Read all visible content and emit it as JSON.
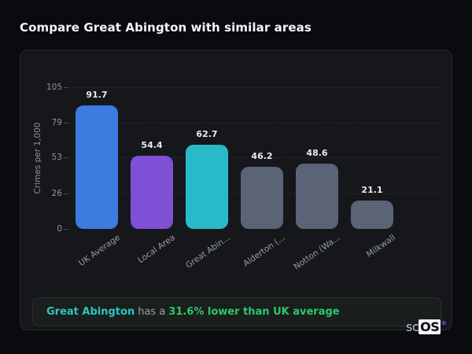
{
  "title": "Compare Great Abington with similar areas",
  "chart_data": {
    "type": "bar",
    "title": "Compare Great Abington with similar areas",
    "xlabel": "",
    "ylabel": "Crimes per 1,000",
    "ylim": [
      0,
      105
    ],
    "yticks": [
      0,
      26,
      53,
      79,
      105
    ],
    "grid": "horizontal-dashed",
    "legend": "none",
    "categories": [
      "UK Average",
      "Local Area",
      "Great Abin...",
      "Alderton (...",
      "Notton (Wa...",
      "Milkwall"
    ],
    "values": [
      91.7,
      54.4,
      62.7,
      46.2,
      48.6,
      21.1
    ],
    "value_labels": [
      "91.7",
      "54.4",
      "62.7",
      "46.2",
      "48.6",
      "21.1"
    ],
    "bar_colors": [
      "#3c7be0",
      "#7d50d6",
      "#28bac9",
      "#5a6476",
      "#5a6476",
      "#5a6476"
    ]
  },
  "note": {
    "area_label": "Great Abington",
    "connector": "has a",
    "highlight": "31.6% lower than UK average"
  },
  "branding": {
    "prefix": "sc",
    "suffix": "OS",
    "registered_mark": "®"
  },
  "colors": {
    "page_bg": "#0a0b0e",
    "panel_bg": "#16171b",
    "panel_border": "#26272c",
    "accent_blue": "#3c7be0",
    "accent_purple": "#7d50d6",
    "accent_cyan": "#28bac9",
    "bar_gray": "#5a6476",
    "note_area_color": "#2cc5c5",
    "note_highlight_color": "#2dc76a"
  }
}
